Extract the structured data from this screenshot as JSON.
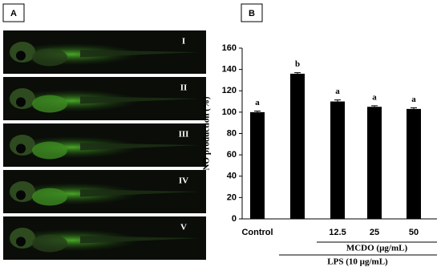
{
  "panel_labels": [
    "A",
    "B"
  ],
  "image_labels": [
    "I",
    "II",
    "III",
    "IV",
    "V"
  ],
  "chart_data": {
    "type": "bar",
    "y_label": "NO production (%)",
    "categories": [
      "Control",
      null,
      "12.5",
      "25",
      "50"
    ],
    "values": [
      100,
      136,
      110,
      105,
      103
    ],
    "errors": [
      1,
      1,
      1.5,
      1,
      1
    ],
    "annotations": [
      "a",
      "b",
      "a",
      "a",
      "a"
    ],
    "group_labels": [
      "MCDO (µg/mL)",
      "LPS (10 µg/mL)"
    ],
    "color": "#000000",
    "ylim": [
      0,
      160
    ],
    "yticks": [
      0,
      20,
      40,
      60,
      80,
      100,
      120,
      140,
      160
    ]
  }
}
